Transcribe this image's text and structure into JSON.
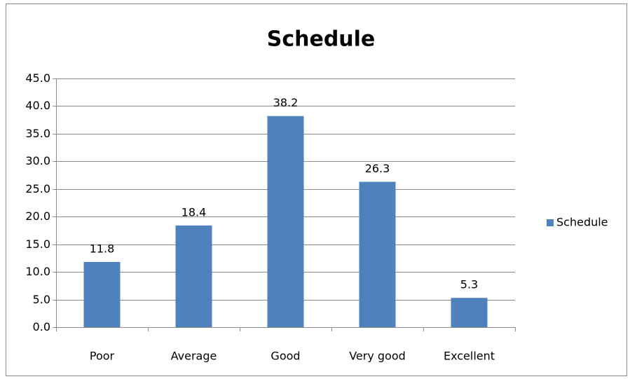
{
  "chart_data": {
    "type": "bar",
    "title": "Schedule",
    "categories": [
      "Poor",
      "Average",
      "Good",
      "Very good",
      "Excellent"
    ],
    "series": [
      {
        "name": "Schedule",
        "color": "#4f81bd",
        "values": [
          11.8,
          18.4,
          38.2,
          26.3,
          5.3
        ]
      }
    ],
    "ylim": [
      0,
      45
    ],
    "yticks": [
      {
        "value": 0,
        "label": "0.0"
      },
      {
        "value": 5,
        "label": "5.0"
      },
      {
        "value": 10,
        "label": "10.0"
      },
      {
        "value": 15,
        "label": "15.0"
      },
      {
        "value": 20,
        "label": "20.0"
      },
      {
        "value": 25,
        "label": "25.0"
      },
      {
        "value": 30,
        "label": "30.0"
      },
      {
        "value": 35,
        "label": "35.0"
      },
      {
        "value": 40,
        "label": "40.0"
      },
      {
        "value": 45,
        "label": "45.0"
      }
    ],
    "grid": true,
    "legend": "right"
  }
}
